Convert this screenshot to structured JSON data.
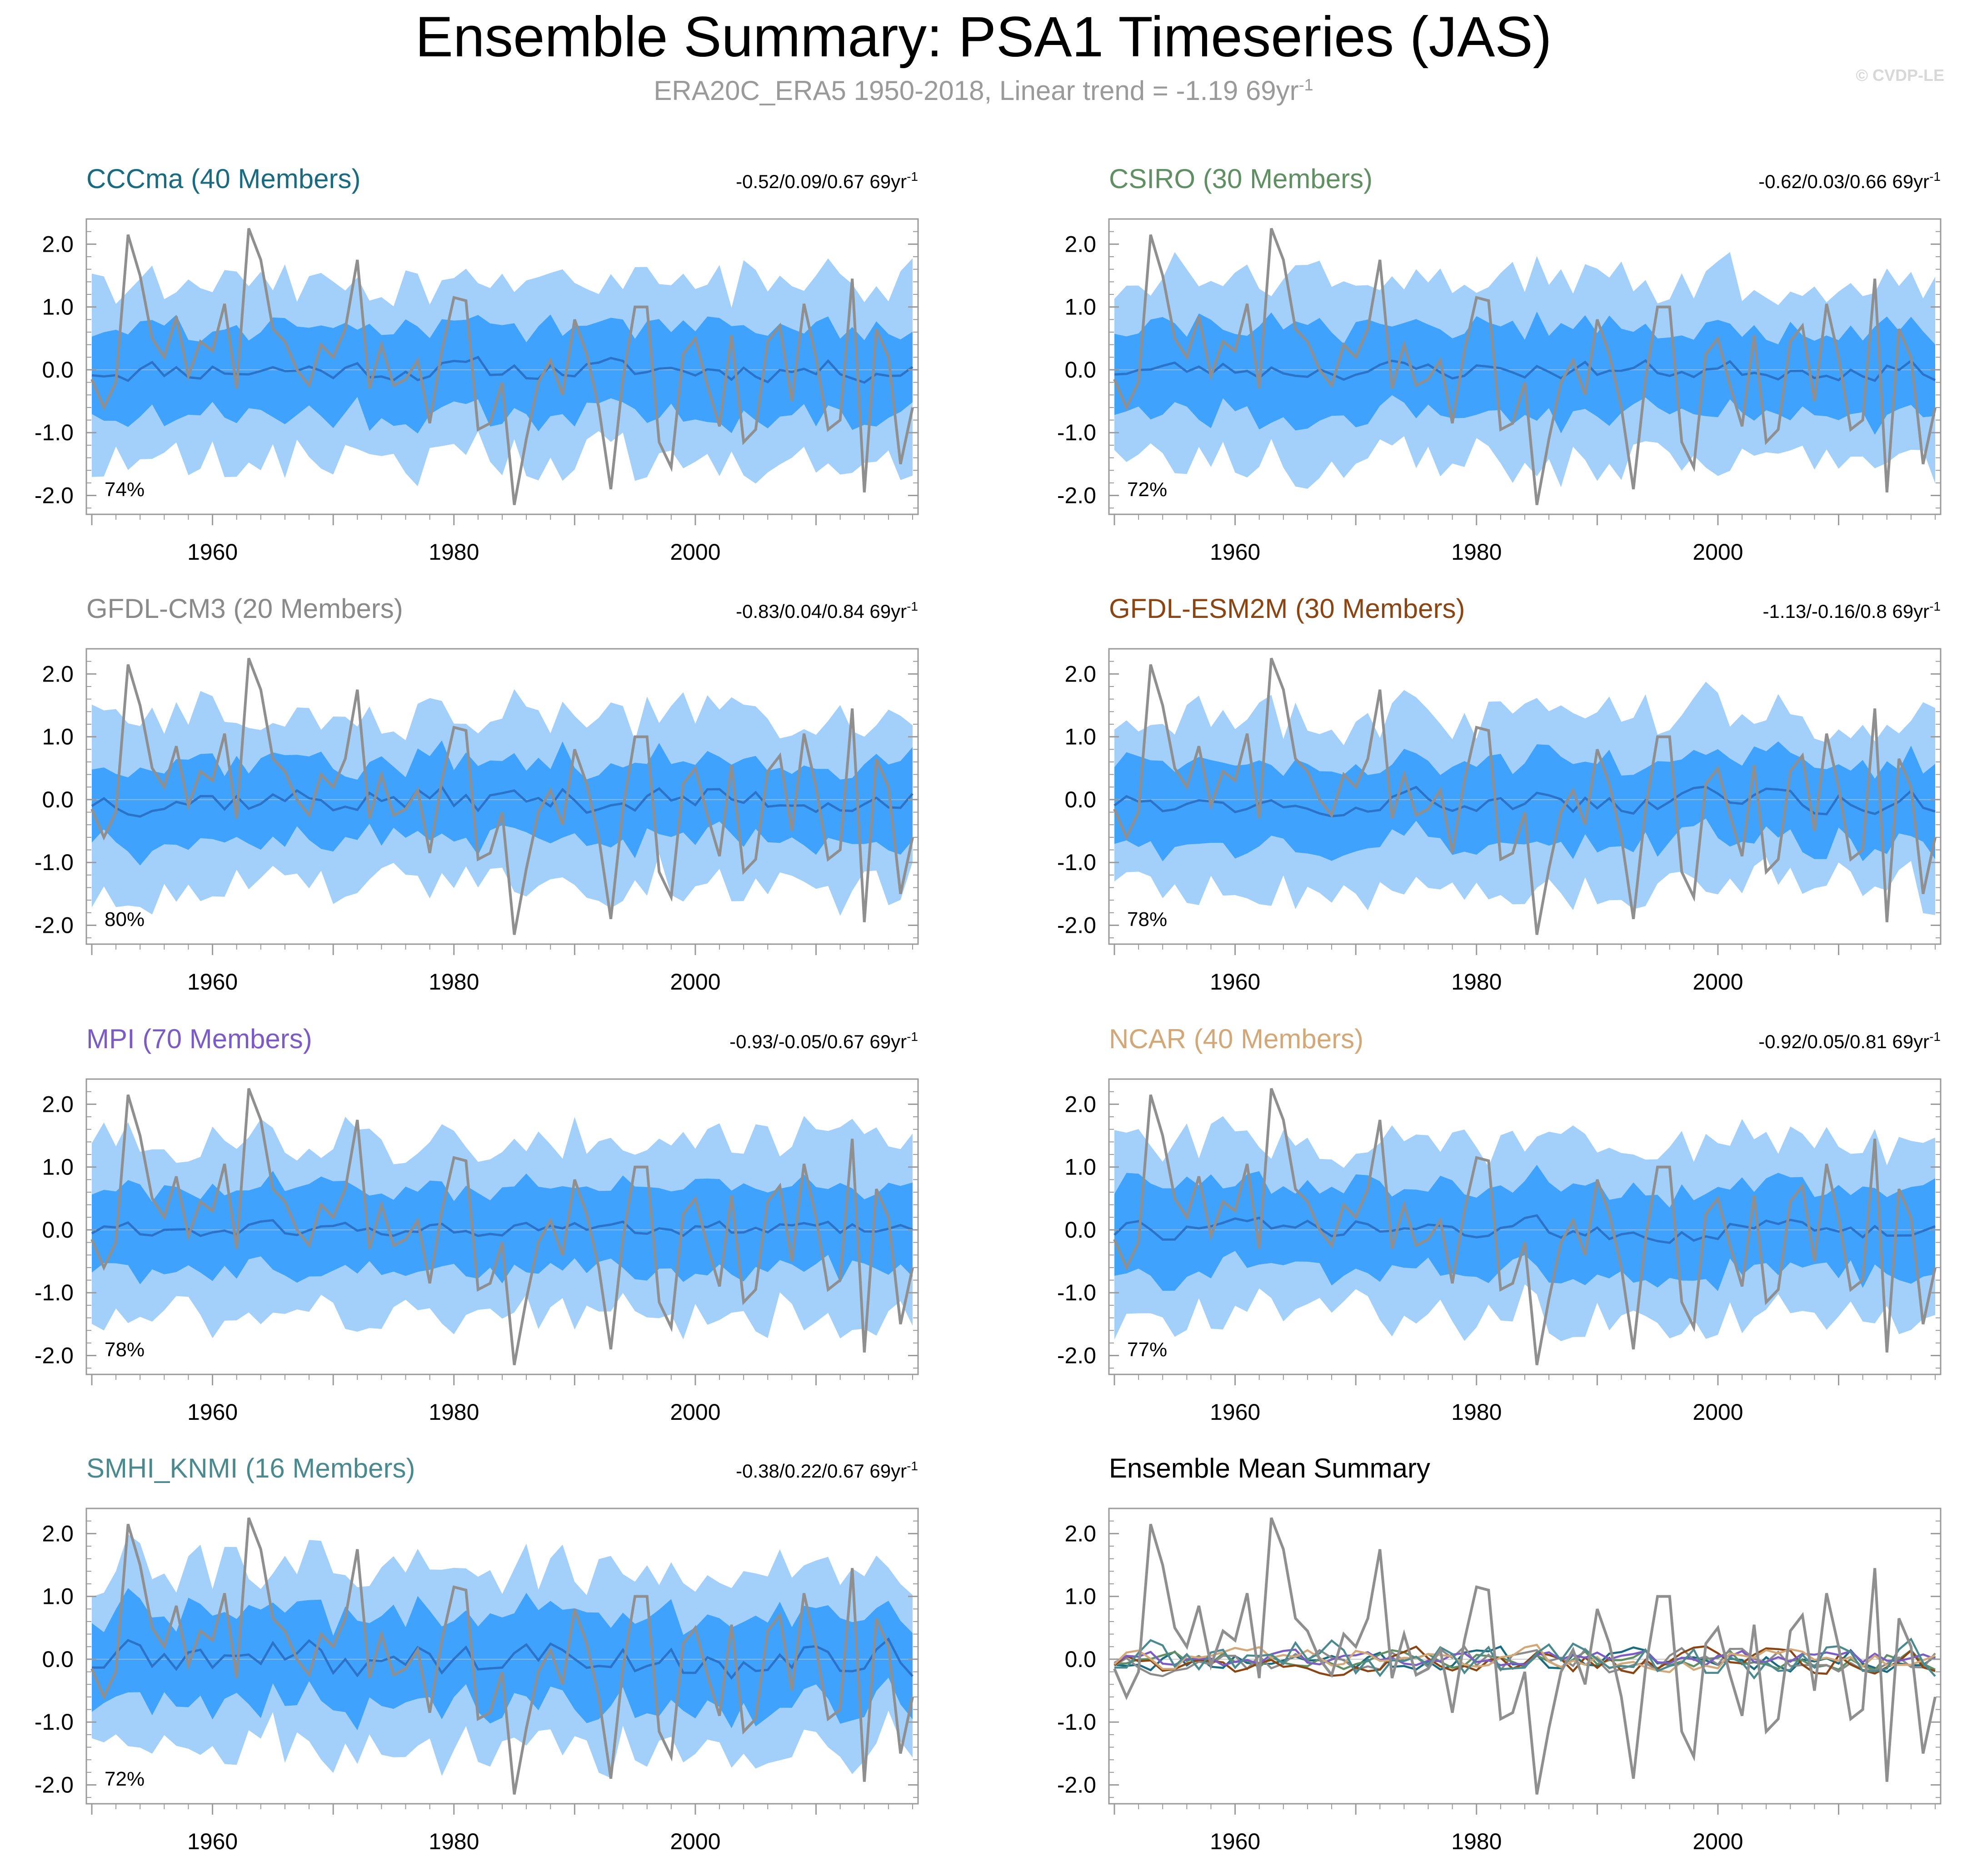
{
  "page": {
    "title": "Ensemble Summary: PSA1 Timeseries (JAS)",
    "subtitle": "ERA20C_ERA5 1950-2018, Linear trend = -1.19 69yr",
    "subtitle_sup": "-1",
    "copyright": "© CVDP-LE"
  },
  "colors": {
    "outer_band": "#a3d0fb",
    "inner_band": "#3fa2fc",
    "ensemble_mean": "#2b73c9",
    "observations": "#8f8f8f",
    "axis": "#9a9a9a"
  },
  "chart_data": [
    {
      "type": "area",
      "title": "CCCma (40 Members)",
      "title_color": "#1a6a80",
      "trend_range": "-0.52/0.09/0.67 69yr",
      "trend_sup": "-1",
      "percent": "74%",
      "x_start": 1950,
      "x_end": 2018,
      "ylim": [
        -2.3,
        2.4
      ],
      "yticks": [
        "2.0",
        "1.0",
        "0.0",
        "-1.0",
        "-2.0"
      ],
      "xticks": [
        "1960",
        "1980",
        "2000"
      ],
      "seed": 11,
      "mean_amp": 0.14,
      "inner_width": 0.66,
      "outer_width": 1.35
    },
    {
      "type": "area",
      "title": "CSIRO (30 Members)",
      "title_color": "#5f8f62",
      "trend_range": "-0.62/0.03/0.66 69yr",
      "trend_sup": "-1",
      "percent": "72%",
      "x_start": 1950,
      "x_end": 2018,
      "ylim": [
        -2.3,
        2.4
      ],
      "yticks": [
        "2.0",
        "1.0",
        "0.0",
        "-1.0",
        "-2.0"
      ],
      "xticks": [
        "1960",
        "1980",
        "2000"
      ],
      "seed": 23,
      "mean_amp": 0.12,
      "inner_width": 0.68,
      "outer_width": 1.38
    },
    {
      "type": "area",
      "title": "GFDL-CM3 (20 Members)",
      "title_color": "#8a8a8a",
      "trend_range": "-0.83/0.04/0.84 69yr",
      "trend_sup": "-1",
      "percent": "80%",
      "x_start": 1950,
      "x_end": 2018,
      "ylim": [
        -2.3,
        2.4
      ],
      "yticks": [
        "2.0",
        "1.0",
        "0.0",
        "-1.0",
        "-2.0"
      ],
      "xticks": [
        "1960",
        "1980",
        "2000"
      ],
      "seed": 37,
      "mean_amp": 0.17,
      "inner_width": 0.6,
      "outer_width": 1.3
    },
    {
      "type": "area",
      "title": "GFDL-ESM2M (30 Members)",
      "title_color": "#8b4513",
      "trend_range": "-1.13/-0.16/0.8 69yr",
      "trend_sup": "-1",
      "percent": "78%",
      "x_start": 1950,
      "x_end": 2018,
      "ylim": [
        -2.3,
        2.4
      ],
      "yticks": [
        "2.0",
        "1.0",
        "0.0",
        "-1.0",
        "-2.0"
      ],
      "xticks": [
        "1960",
        "1980",
        "2000"
      ],
      "seed": 49,
      "mean_amp": 0.16,
      "inner_width": 0.62,
      "outer_width": 1.32
    },
    {
      "type": "area",
      "title": "MPI (70 Members)",
      "title_color": "#7b5cc4",
      "trend_range": "-0.93/-0.05/0.67 69yr",
      "trend_sup": "-1",
      "percent": "78%",
      "x_start": 1950,
      "x_end": 2018,
      "ylim": [
        -2.3,
        2.4
      ],
      "yticks": [
        "2.0",
        "1.0",
        "0.0",
        "-1.0",
        "-2.0"
      ],
      "xticks": [
        "1960",
        "1980",
        "2000"
      ],
      "seed": 61,
      "mean_amp": 0.1,
      "inner_width": 0.62,
      "outer_width": 1.32
    },
    {
      "type": "area",
      "title": "NCAR (40 Members)",
      "title_color": "#d2a878",
      "trend_range": "-0.92/0.05/0.81 69yr",
      "trend_sup": "-1",
      "percent": "77%",
      "x_start": 1950,
      "x_end": 2018,
      "ylim": [
        -2.3,
        2.4
      ],
      "yticks": [
        "2.0",
        "1.0",
        "0.0",
        "-1.0",
        "-2.0"
      ],
      "xticks": [
        "1960",
        "1980",
        "2000"
      ],
      "seed": 73,
      "mean_amp": 0.14,
      "inner_width": 0.64,
      "outer_width": 1.32
    },
    {
      "type": "area",
      "title": "SMHI_KNMI (16 Members)",
      "title_color": "#4a8a8f",
      "trend_range": "-0.38/0.22/0.67 69yr",
      "trend_sup": "-1",
      "percent": "72%",
      "x_start": 1950,
      "x_end": 2018,
      "ylim": [
        -2.3,
        2.4
      ],
      "yticks": [
        "2.0",
        "1.0",
        "0.0",
        "-1.0",
        "-2.0"
      ],
      "xticks": [
        "1960",
        "1980",
        "2000"
      ],
      "seed": 89,
      "mean_amp": 0.24,
      "inner_width": 0.68,
      "outer_width": 1.36
    },
    {
      "type": "line",
      "title": "Ensemble Mean Summary",
      "title_color": "#000000",
      "x_start": 1950,
      "x_end": 2018,
      "ylim": [
        -2.3,
        2.4
      ],
      "yticks": [
        "2.0",
        "1.0",
        "0.0",
        "-1.0",
        "-2.0"
      ],
      "xticks": [
        "1960",
        "1980",
        "2000"
      ],
      "series_colors": [
        "#1a6a80",
        "#5f8f62",
        "#8a8a8a",
        "#8b4513",
        "#7b5cc4",
        "#d2a878",
        "#4a8a8f"
      ]
    }
  ],
  "observations": {
    "name": "ERA20C_ERA5",
    "years": "1950-2018",
    "values": [
      -0.15,
      -0.6,
      -0.2,
      2.15,
      1.5,
      0.5,
      0.2,
      0.85,
      -0.1,
      0.45,
      0.3,
      1.05,
      -0.3,
      2.25,
      1.75,
      0.65,
      0.45,
      0.0,
      -0.25,
      0.4,
      0.2,
      0.65,
      1.75,
      -0.3,
      0.4,
      -0.25,
      -0.15,
      0.15,
      -0.85,
      0.3,
      1.15,
      1.1,
      -0.95,
      -0.85,
      -0.2,
      -2.15,
      -1.1,
      -0.2,
      0.15,
      -0.4,
      0.8,
      0.25,
      -0.6,
      -1.9,
      -0.15,
      1.0,
      1.0,
      -1.15,
      -1.55,
      0.25,
      0.5,
      -0.25,
      -0.9,
      0.55,
      -1.15,
      -0.95,
      0.45,
      0.7,
      -0.5,
      1.05,
      0.2,
      -0.95,
      -0.8,
      1.45,
      -1.95,
      0.65,
      0.2,
      -1.5,
      -0.6
    ]
  }
}
